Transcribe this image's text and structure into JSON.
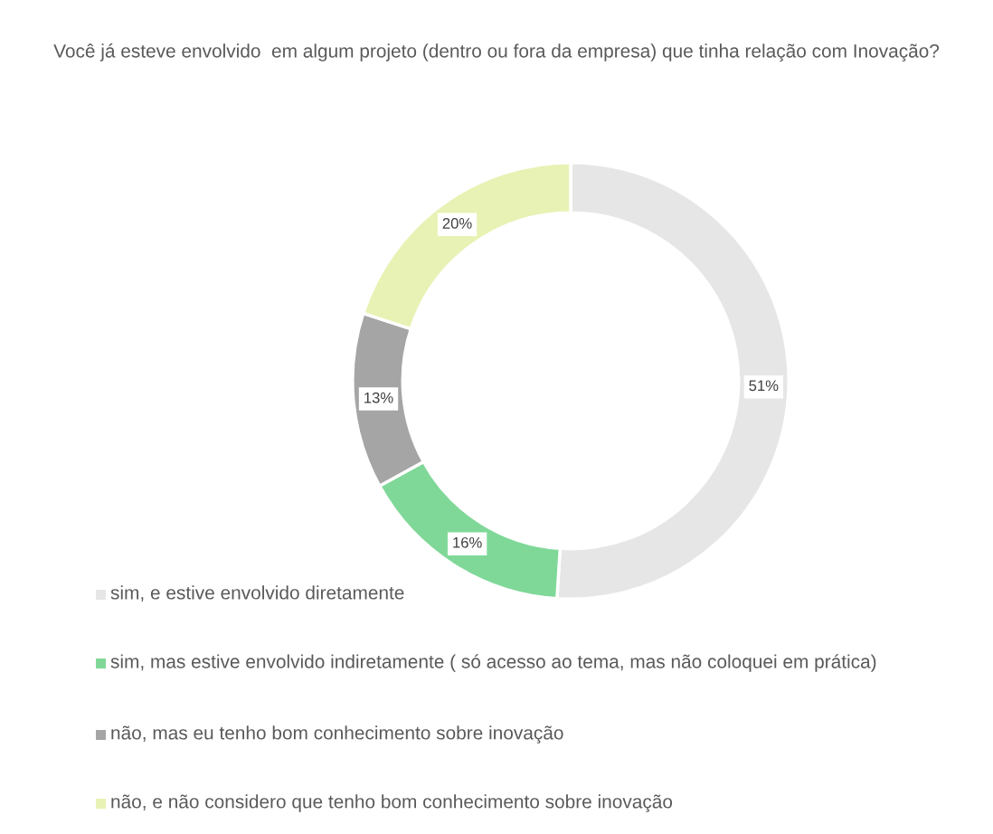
{
  "chart_data": {
    "type": "donut",
    "title": "Você já esteve envolvido  em algum projeto (dentro ou fora da empresa) que tinha relação com Inovação?",
    "categories": [
      "sim, e estive envolvido diretamente",
      "sim, mas estive envolvido indiretamente ( só acesso ao tema, mas não coloquei em prática)",
      "não, mas eu tenho bom conhecimento sobre inovação",
      "não, e não considero que tenho bom conhecimento sobre inovação"
    ],
    "values": [
      51,
      16,
      13,
      20
    ],
    "colors": [
      "#e6e6e6",
      "#7fd898",
      "#a5a5a5",
      "#e8f2b4"
    ],
    "value_labels": [
      "51%",
      "16%",
      "13%",
      "20%"
    ],
    "legend": "bottom left"
  }
}
